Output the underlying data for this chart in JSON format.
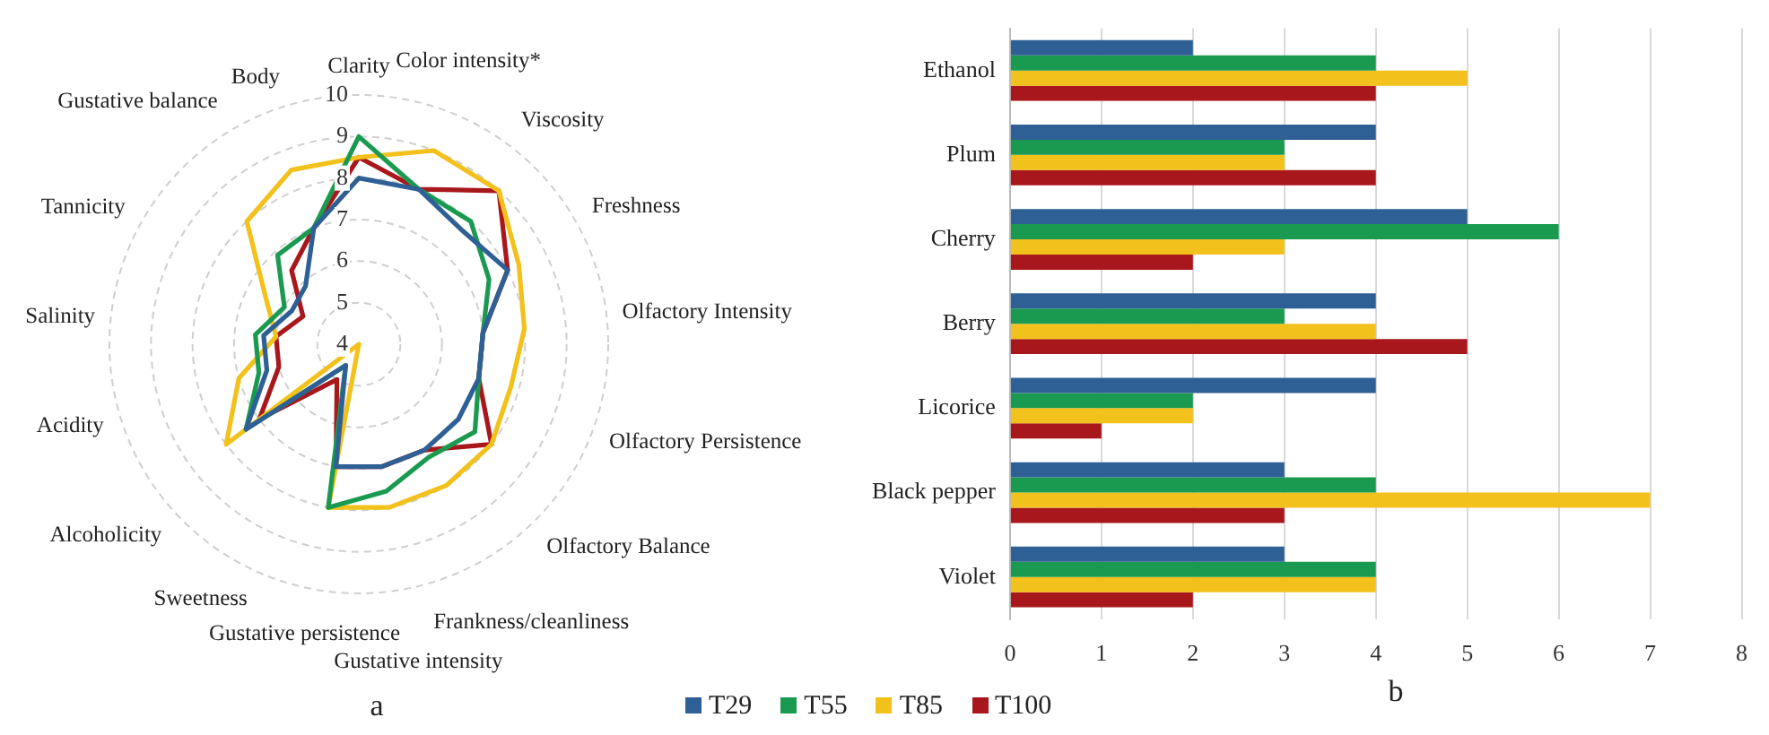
{
  "chart_data": [
    {
      "type": "radar",
      "categories": [
        "Clarity",
        "Color intensity*",
        "Viscosity",
        "Freshness",
        "Olfactory Intensity",
        "Olfactory Persistence",
        "Olfactory Balance",
        "Frankness/cleanliness",
        "Gustative intensity",
        "Gustative persistence",
        "Sweetness",
        "Alcoholicity",
        "Acidity",
        "Salinity",
        "Tannicity",
        "Gustative balance",
        "Body"
      ],
      "series": [
        {
          "name": "T29",
          "color": "#2e5f95",
          "values": [
            8,
            8,
            7.7,
            8,
            7,
            7,
            7,
            7,
            7,
            7,
            4.6,
            7.4,
            6.3,
            6.3,
            5.8,
            5.9,
            7
          ]
        },
        {
          "name": "T55",
          "color": "#1a9a50",
          "values": [
            9,
            8,
            8,
            7.5,
            7,
            7,
            7.5,
            7.2,
            7.6,
            8,
            4.6,
            7.4,
            6.5,
            6.5,
            6,
            6.9,
            7
          ]
        },
        {
          "name": "T85",
          "color": "#f2c11c",
          "values": [
            8.5,
            9,
            9,
            8.3,
            8,
            7.8,
            8,
            8,
            8,
            8,
            4,
            8,
            7,
            6,
            6.5,
            8,
            8.5
          ]
        },
        {
          "name": "T100",
          "color": "#a8171b",
          "values": [
            8.5,
            8,
            9,
            8,
            7,
            7,
            8,
            7,
            7,
            7,
            5,
            7,
            6,
            6,
            5.5,
            6.4,
            7
          ]
        }
      ],
      "ylim": [
        4,
        10
      ],
      "yticks": [
        4,
        5,
        6,
        7,
        8,
        9,
        10
      ],
      "grid": true,
      "marker": "none",
      "legend": "bottom",
      "annotations": [
        "a"
      ]
    },
    {
      "type": "bar",
      "orientation": "horizontal",
      "categories": [
        "Ethanol",
        "Plum",
        "Cherry",
        "Berry",
        "Licorice",
        "Black pepper",
        "Violet"
      ],
      "series": [
        {
          "name": "T29",
          "color": "#2e5f95",
          "values": [
            2,
            4,
            5,
            4,
            4,
            3,
            3
          ]
        },
        {
          "name": "T55",
          "color": "#1a9a50",
          "values": [
            4,
            3,
            6,
            3,
            2,
            4,
            4
          ]
        },
        {
          "name": "T85",
          "color": "#f2c11c",
          "values": [
            5,
            3,
            3,
            4,
            2,
            7,
            4
          ]
        },
        {
          "name": "T100",
          "color": "#a8171b",
          "values": [
            4,
            4,
            2,
            5,
            1,
            3,
            2
          ]
        }
      ],
      "xlim": [
        0,
        8
      ],
      "xticks": [
        0,
        1,
        2,
        3,
        4,
        5,
        6,
        7,
        8
      ],
      "grid": "x",
      "legend": "bottom",
      "annotations": [
        "b"
      ]
    }
  ]
}
